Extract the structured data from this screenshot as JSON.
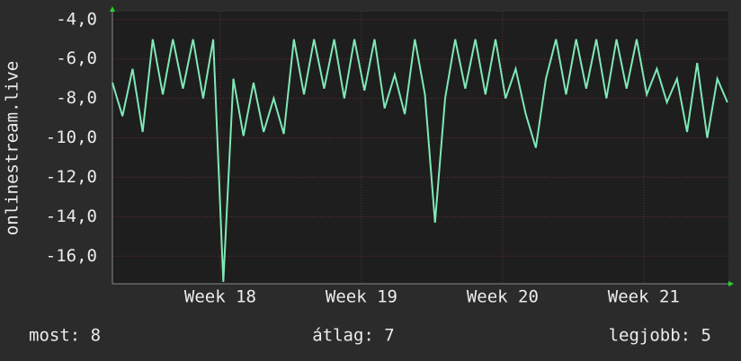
{
  "chart_data": {
    "type": "line",
    "y_label": "onlinestream.live",
    "x": [
      0,
      0.5,
      1,
      1.5,
      2,
      2.5,
      3,
      3.5,
      4,
      4.5,
      5,
      5.5,
      6,
      6.5,
      7,
      7.5,
      8,
      8.5,
      9,
      9.5,
      10,
      10.5,
      11,
      11.5,
      12,
      12.5,
      13,
      13.5,
      14,
      14.5,
      15,
      15.5,
      16,
      16.5,
      17,
      17.5,
      18,
      18.5,
      19,
      19.5,
      20,
      20.5,
      21,
      21.5,
      22,
      22.5,
      23,
      23.5,
      24,
      24.5,
      25,
      25.5,
      26,
      26.5,
      27,
      27.5,
      28,
      28.5,
      29,
      29.5,
      30,
      30.5
    ],
    "series": [
      {
        "name": "onlinestream.live",
        "color": "#7fe8b6",
        "values": [
          -7.2,
          -8.9,
          -6.5,
          -9.7,
          -5.0,
          -7.8,
          -5.0,
          -7.5,
          -5.0,
          -8.0,
          -5.0,
          -17.3,
          -7.0,
          -9.9,
          -7.2,
          -9.7,
          -8.0,
          -9.8,
          -5.0,
          -7.8,
          -5.0,
          -7.5,
          -5.0,
          -8.0,
          -5.0,
          -7.6,
          -5.0,
          -8.5,
          -6.8,
          -8.8,
          -5.0,
          -7.8,
          -14.3,
          -8.0,
          -5.0,
          -7.5,
          -5.0,
          -7.8,
          -5.0,
          -8.0,
          -6.5,
          -8.8,
          -10.5,
          -7.0,
          -5.0,
          -7.8,
          -5.0,
          -7.5,
          -5.0,
          -8.0,
          -5.0,
          -7.5,
          -5.0,
          -7.8,
          -6.5,
          -8.2,
          -7.0,
          -9.7,
          -6.2,
          -10.0,
          -7.0,
          -8.2
        ]
      }
    ],
    "xlim": [
      0,
      30.55
    ],
    "xticks": [
      {
        "value": 5.35,
        "label": "Week 18"
      },
      {
        "value": 12.35,
        "label": "Week 19"
      },
      {
        "value": 19.35,
        "label": "Week 20"
      },
      {
        "value": 26.35,
        "label": "Week 21"
      }
    ],
    "ylim": [
      -17.4,
      -3.6
    ],
    "yticks": [
      {
        "value": -4,
        "label": "-4,0"
      },
      {
        "value": -6,
        "label": "-6,0"
      },
      {
        "value": -8,
        "label": "-8,0"
      },
      {
        "value": -10,
        "label": "-10,0"
      },
      {
        "value": -12,
        "label": "-12,0"
      },
      {
        "value": -14,
        "label": "-14,0"
      },
      {
        "value": -16,
        "label": "-16,0"
      }
    ],
    "grid": true,
    "stats": [
      "most: 8",
      "átlag: 7",
      "legjobb: 5"
    ]
  }
}
